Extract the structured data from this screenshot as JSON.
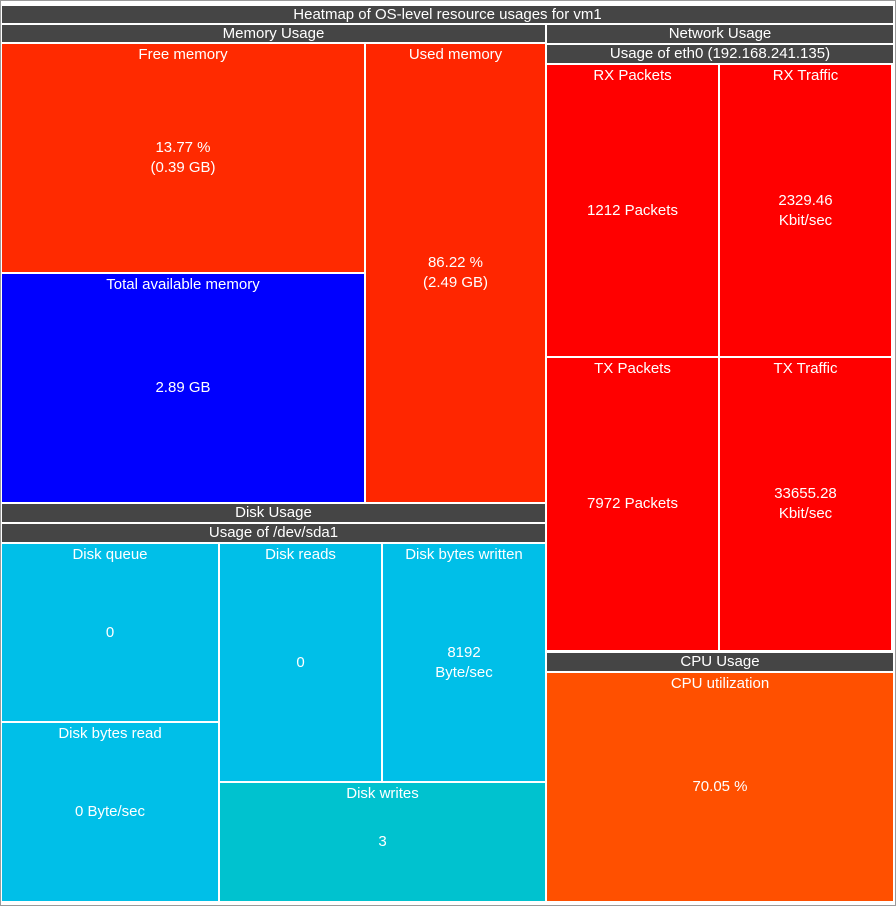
{
  "chart_data": {
    "type": "heatmap",
    "title": "Heatmap of OS-level resource usages for vm1",
    "groups": [
      {
        "name": "Memory Usage",
        "subgroup": "",
        "cells": [
          {
            "label": "Free memory",
            "lines": [
              "13.77 %",
              "(0.39 GB)"
            ],
            "percent": 13.77,
            "gb": 0.39,
            "color": "#ff2a00"
          },
          {
            "label": "Total available memory",
            "lines": [
              "2.89 GB"
            ],
            "gb": 2.89,
            "color": "#0000ff"
          },
          {
            "label": "Used memory",
            "lines": [
              "86.22 %",
              "(2.49 GB)"
            ],
            "percent": 86.22,
            "gb": 2.49,
            "color": "#ff2600"
          }
        ]
      },
      {
        "name": "Disk Usage",
        "subgroup": "Usage of /dev/sda1",
        "cells": [
          {
            "label": "Disk queue",
            "lines": [
              "0"
            ],
            "value": 0,
            "color": "#00bfe8"
          },
          {
            "label": "Disk bytes read",
            "lines": [
              "0 Byte/sec"
            ],
            "value": 0,
            "unit": "Byte/sec",
            "color": "#00bfe8"
          },
          {
            "label": "Disk reads",
            "lines": [
              "0"
            ],
            "value": 0,
            "color": "#00bfe8"
          },
          {
            "label": "Disk bytes written",
            "lines": [
              "8192",
              "Byte/sec"
            ],
            "value": 8192,
            "unit": "Byte/sec",
            "color": "#00bfe8"
          },
          {
            "label": "Disk writes",
            "lines": [
              "3"
            ],
            "value": 3,
            "color": "#00c2cf"
          }
        ]
      },
      {
        "name": "Network Usage",
        "subgroup": "Usage of eth0 (192.168.241.135)",
        "cells": [
          {
            "label": "RX Packets",
            "lines": [
              "1212 Packets"
            ],
            "value": 1212,
            "unit": "Packets",
            "color": "#ff0000"
          },
          {
            "label": "RX Traffic",
            "lines": [
              "2329.46",
              "Kbit/sec"
            ],
            "value": 2329.46,
            "unit": "Kbit/sec",
            "color": "#ff0000"
          },
          {
            "label": "TX Packets",
            "lines": [
              "7972 Packets"
            ],
            "value": 7972,
            "unit": "Packets",
            "color": "#ff0000"
          },
          {
            "label": "TX Traffic",
            "lines": [
              "33655.28",
              "Kbit/sec"
            ],
            "value": 33655.28,
            "unit": "Kbit/sec",
            "color": "#ff0000"
          }
        ]
      },
      {
        "name": "CPU Usage",
        "subgroup": "",
        "cells": [
          {
            "label": "CPU utilization",
            "lines": [
              "70.05 %"
            ],
            "percent": 70.05,
            "color": "#ff5000"
          }
        ]
      }
    ]
  }
}
